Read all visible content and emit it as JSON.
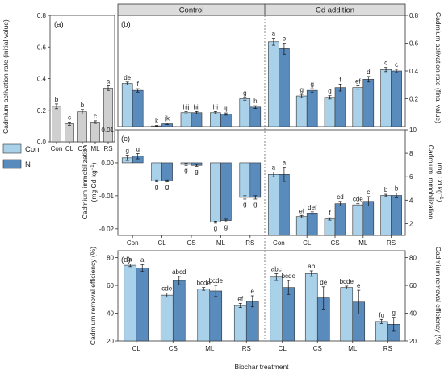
{
  "colors": {
    "con": "#a9d2ea",
    "n": "#5a8bbd",
    "panel_a_bar": "#cfcfcf",
    "header_bg": "#dcdcdc",
    "frame": "#333333",
    "divider": "#666666"
  },
  "section_headers": {
    "control": "Control",
    "cd": "Cd addition"
  },
  "x_axis_title": "Biochar treatment",
  "legend": {
    "placement": "left, beside panel (c)",
    "entries": [
      "Con",
      "N"
    ]
  },
  "chart_data": [
    {
      "id": "a",
      "panel_label": "(a)",
      "type": "bar",
      "ylabel": "Cadmium activation rate (initial value)",
      "ylim": [
        0,
        0.8
      ],
      "yticks": [
        "0.0",
        "0.2",
        "0.4",
        "0.6",
        "0.8"
      ],
      "categories": [
        "Con",
        "CL",
        "CS",
        "ML",
        "RS"
      ],
      "values": [
        0.225,
        0.115,
        0.19,
        0.125,
        0.34
      ],
      "errors": [
        0.015,
        0.01,
        0.015,
        0.008,
        0.015
      ],
      "letters": [
        "b",
        "c",
        "b",
        "c",
        "a"
      ]
    },
    {
      "id": "b",
      "panel_label": "(b)",
      "type": "bar",
      "ylabel_right": "Cadmium activation rate (final value)",
      "ylim": [
        0,
        0.8
      ],
      "yticks": [
        "0.2",
        "0.4",
        "0.6",
        "0.8"
      ],
      "categories": [
        "Con",
        "CL",
        "CS",
        "ML",
        "RS"
      ],
      "groups": [
        {
          "name": "Control",
          "series": [
            {
              "name": "Con",
              "values": [
                0.31,
                0.005,
                0.1,
                0.1,
                0.2
              ],
              "errors": [
                0.01,
                0.003,
                0.008,
                0.008,
                0.01
              ],
              "letters": [
                "de",
                "k",
                "hij",
                "hi",
                "g"
              ]
            },
            {
              "name": "N",
              "values": [
                0.26,
                0.02,
                0.1,
                0.09,
                0.14
              ],
              "errors": [
                0.012,
                0.005,
                0.008,
                0.008,
                0.01
              ],
              "letters": [
                "f",
                "jk",
                "hij",
                "ij",
                "h"
              ]
            }
          ]
        },
        {
          "name": "Cd addition",
          "series": [
            {
              "name": "Con",
              "values": [
                0.61,
                0.22,
                0.21,
                0.28,
                0.41
              ],
              "errors": [
                0.025,
                0.012,
                0.012,
                0.012,
                0.015
              ],
              "letters": [
                "a",
                "g",
                "g",
                "ef",
                "c"
              ]
            },
            {
              "name": "N",
              "values": [
                0.56,
                0.26,
                0.28,
                0.34,
                0.4
              ],
              "errors": [
                0.04,
                0.012,
                0.025,
                0.02,
                0.012
              ],
              "letters": [
                "b",
                "g",
                "f",
                "d",
                "c"
              ]
            }
          ]
        }
      ]
    },
    {
      "id": "c",
      "panel_label": "(c)",
      "type": "bar",
      "ylabel": "Cadmium immobilization",
      "ylabel_unit": "(mg Cd kg",
      "ylabel_unit_sup": "−1",
      "ylabel_unit_end": ")",
      "ylim_left": [
        -0.022,
        0.01
      ],
      "yticks_left": [
        "-0.02",
        "-0.01",
        "0.00",
        "0.01"
      ],
      "ylim_right": [
        1,
        10
      ],
      "yticks_right": [
        "2",
        "4",
        "6",
        "8",
        "10"
      ],
      "categories": [
        "Con",
        "CL",
        "CS",
        "ML",
        "RS"
      ],
      "groups": [
        {
          "name": "Control",
          "axis": "left",
          "series": [
            {
              "name": "Con",
              "values": [
                0.0015,
                -0.0055,
                -0.0005,
                -0.018,
                -0.0105
              ],
              "errors": [
                0.0008,
                0.0003,
                0.0003,
                0.0003,
                0.0005
              ],
              "letters": [
                "g",
                "g",
                "g",
                "g",
                "g"
              ]
            },
            {
              "name": "N",
              "values": [
                0.002,
                -0.0055,
                -0.0008,
                -0.0175,
                -0.0105
              ],
              "errors": [
                0.0008,
                0.0003,
                0.0003,
                0.0004,
                0.0005
              ],
              "letters": [
                "g",
                "g",
                "g",
                "g",
                "g"
              ]
            }
          ]
        },
        {
          "name": "Cd addition",
          "axis": "right",
          "series": [
            {
              "name": "Con",
              "values": [
                6.2,
                2.6,
                2.4,
                3.6,
                4.4
              ],
              "errors": [
                0.2,
                0.1,
                0.1,
                0.1,
                0.1
              ],
              "letters": [
                "a",
                "ef",
                "f",
                "cde",
                "b"
              ]
            },
            {
              "name": "N",
              "values": [
                6.2,
                2.9,
                3.7,
                3.9,
                4.4
              ],
              "errors": [
                0.6,
                0.1,
                0.2,
                0.4,
                0.2
              ],
              "letters": [
                "a",
                "def",
                "cd",
                "c",
                "b"
              ]
            }
          ]
        }
      ]
    },
    {
      "id": "d",
      "panel_label": "(d)",
      "type": "bar",
      "ylabel": "Cadmium removal efficiency (%)",
      "ylabel_right": "Cadmium removal efficiency (%)",
      "ylim": [
        20,
        85
      ],
      "yticks": [
        "20",
        "40",
        "60",
        "80"
      ],
      "categories": [
        "CL",
        "CS",
        "ML",
        "RS"
      ],
      "groups": [
        {
          "name": "Control",
          "series": [
            {
              "name": "Con",
              "values": [
                74.5,
                53,
                57.5,
                45.5
              ],
              "errors": [
                1,
                1.5,
                1,
                1.5
              ],
              "letters": [
                "a",
                "cde",
                "bcde",
                "ef"
              ]
            },
            {
              "name": "N",
              "values": [
                72.5,
                63.5,
                56,
                48.5
              ],
              "errors": [
                2.5,
                3,
                4,
                4
              ],
              "letters": [
                "a",
                "abcd",
                "bcde",
                "e"
              ]
            }
          ]
        },
        {
          "name": "Cd addition",
          "series": [
            {
              "name": "Con",
              "values": [
                66,
                68.5,
                58.5,
                34
              ],
              "errors": [
                2.5,
                2,
                1,
                1.5
              ],
              "letters": [
                "abc",
                "ab",
                "bcde",
                "fg"
              ]
            },
            {
              "name": "N",
              "values": [
                58.5,
                51,
                48,
                32
              ],
              "errors": [
                5,
                8,
                8.5,
                5
              ],
              "letters": [
                "bcde",
                "de",
                "e",
                "g"
              ]
            }
          ]
        }
      ]
    }
  ]
}
